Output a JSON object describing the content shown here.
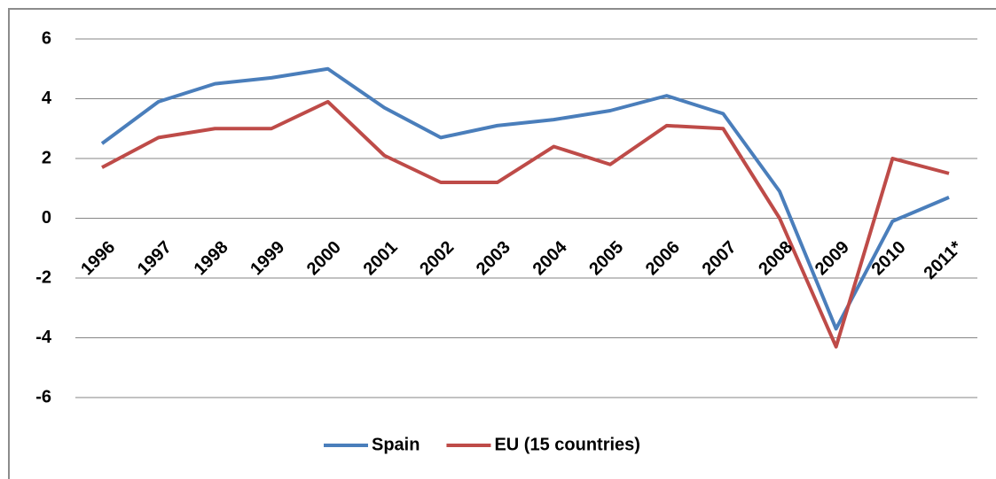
{
  "chart_data": {
    "type": "line",
    "categories": [
      "1996",
      "1997",
      "1998",
      "1999",
      "2000",
      "2001",
      "2002",
      "2003",
      "2004",
      "2005",
      "2006",
      "2007",
      "2008",
      "2009",
      "2010",
      "2011*"
    ],
    "series": [
      {
        "name": "Spain",
        "color": "#4a7ebb",
        "values": [
          2.5,
          3.9,
          4.5,
          4.7,
          5.0,
          3.7,
          2.7,
          3.1,
          3.3,
          3.6,
          4.1,
          3.5,
          0.9,
          -3.7,
          -0.1,
          0.7
        ]
      },
      {
        "name": "EU (15 countries)",
        "color": "#be4b48",
        "values": [
          1.7,
          2.7,
          3.0,
          3.0,
          3.9,
          2.1,
          1.2,
          1.2,
          2.4,
          1.8,
          3.1,
          3.0,
          0.0,
          -4.3,
          2.0,
          1.5
        ]
      }
    ],
    "ylim": [
      -6,
      6
    ],
    "yticks": [
      6,
      4,
      2,
      0,
      -2,
      -4,
      -6
    ],
    "grid": true,
    "legend": "bottom"
  }
}
